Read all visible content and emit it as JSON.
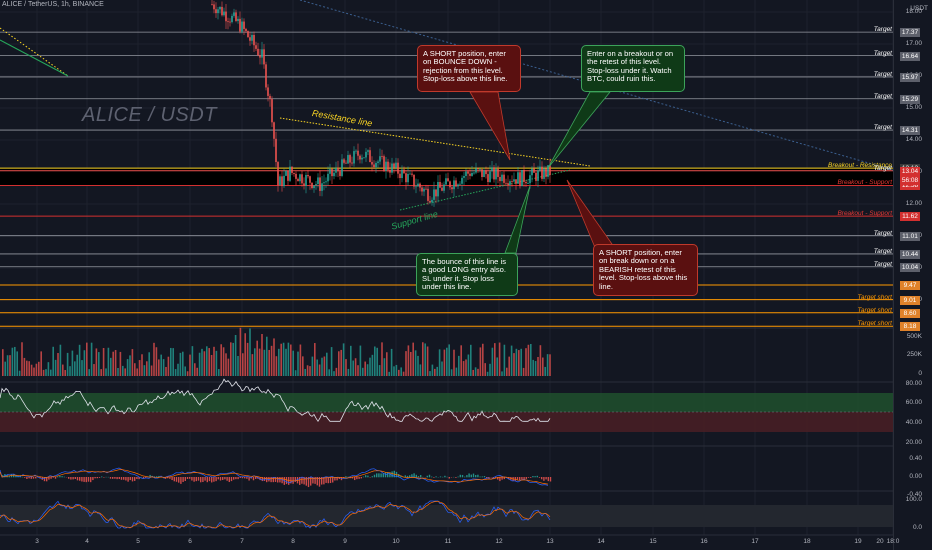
{
  "header": {
    "symbol_line": "ALICE / TetherUS, 1h, BINANCE",
    "currency": "USDT"
  },
  "watermark": "ALICE / USDT",
  "colors": {
    "background": "#131722",
    "up": "#26a69a",
    "down": "#ef5350",
    "target": "#ffffff",
    "target_short": "#ff9800",
    "support": "#d32f2f",
    "resistance": "#f9d423",
    "note_red": "#5a1010",
    "note_green": "#0f3a17"
  },
  "chart_annotations": {
    "resistance_label": "Resistance line",
    "support_label": "Support line"
  },
  "notes": [
    {
      "id": "short-bounce",
      "style": "red",
      "text": "A SHORT position, enter on BOUNCE DOWN - rejection from this level. Stop-loss above this line."
    },
    {
      "id": "breakout-long",
      "style": "green",
      "text": "Enter on a breakout or on the retest of this level. Stop-loss under it. Watch BTC, could ruin this."
    },
    {
      "id": "bounce-long",
      "style": "green",
      "text": "The bounce of this line is a good LONG entry also. SL under it. Stop loss under this line."
    },
    {
      "id": "short-breakdown",
      "style": "red",
      "text": "A SHORT position, enter on break down or on a BEARISH retest of this level. Stop-loss above this line."
    }
  ],
  "levels": [
    {
      "label": "Target",
      "value": "17.37",
      "kind": "target"
    },
    {
      "label": "Target",
      "value": "16.64",
      "kind": "target"
    },
    {
      "label": "Target",
      "value": "15.97",
      "kind": "target"
    },
    {
      "label": "Target",
      "value": "15.29",
      "kind": "target"
    },
    {
      "label": "Target",
      "value": "14.31",
      "kind": "target"
    },
    {
      "label": "Breakout - Resistance",
      "value": "13.12",
      "kind": "resistance"
    },
    {
      "label": "Target",
      "value": "13.04",
      "kind": "current"
    },
    {
      "label": "Breakout - Support",
      "value": "12.58",
      "kind": "support"
    },
    {
      "label": "Breakout - Support",
      "value": "11.62",
      "kind": "support"
    },
    {
      "label": "Target",
      "value": "11.01",
      "kind": "target"
    },
    {
      "label": "Target",
      "value": "10.44",
      "kind": "target"
    },
    {
      "label": "Target",
      "value": "10.04",
      "kind": "target"
    },
    {
      "label": "",
      "value": "9.47",
      "kind": "short"
    },
    {
      "label": "Target short",
      "value": "9.01",
      "kind": "short"
    },
    {
      "label": "Target short",
      "value": "8.60",
      "kind": "short"
    },
    {
      "label": "Target short",
      "value": "8.18",
      "kind": "short"
    }
  ],
  "countdown": "56:08",
  "price_axis_ticks": [
    "18.00",
    "17.00",
    "16.00",
    "15.00",
    "14.00",
    "13.00",
    "12.00",
    "11.00",
    "10.00",
    "9.00"
  ],
  "volume_axis_ticks": [
    "500K",
    "250K",
    "0"
  ],
  "rsi_axis_ticks": [
    "80.00",
    "60.00",
    "40.00",
    "20.00"
  ],
  "macd_axis_ticks": [
    "0.40",
    "0.00",
    "-0.40"
  ],
  "stoch_axis_ticks": [
    "100.0",
    "0.0"
  ],
  "x_axis_ticks": [
    "3",
    "4",
    "5",
    "6",
    "7",
    "8",
    "9",
    "10",
    "11",
    "12",
    "13",
    "14",
    "15",
    "16",
    "17",
    "18",
    "19",
    "20",
    "18:0"
  ]
}
